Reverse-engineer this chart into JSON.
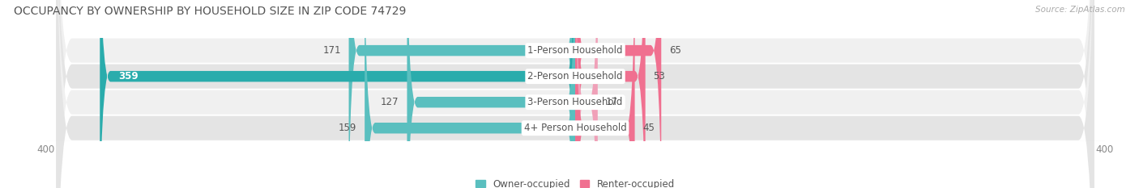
{
  "title": "OCCUPANCY BY OWNERSHIP BY HOUSEHOLD SIZE IN ZIP CODE 74729",
  "source": "Source: ZipAtlas.com",
  "categories": [
    "1-Person Household",
    "2-Person Household",
    "3-Person Household",
    "4+ Person Household"
  ],
  "owner_values": [
    171,
    359,
    127,
    159
  ],
  "renter_values": [
    65,
    53,
    17,
    45
  ],
  "owner_colors": [
    "#5abfbf",
    "#2aacac",
    "#5abfbf",
    "#5abfbf"
  ],
  "renter_colors": [
    "#f07090",
    "#f07090",
    "#f0a0b8",
    "#f07090"
  ],
  "row_bg_colors": [
    "#f0f0f0",
    "#e4e4e4",
    "#f0f0f0",
    "#e4e4e4"
  ],
  "axis_max": 400,
  "label_fontsize": 8.5,
  "title_fontsize": 10,
  "legend_fontsize": 8.5,
  "axis_tick_fontsize": 8.5,
  "fig_bg_color": "#ffffff",
  "value_label_color": "#555555",
  "value_label_white": "#ffffff",
  "category_label_color": "#555555"
}
